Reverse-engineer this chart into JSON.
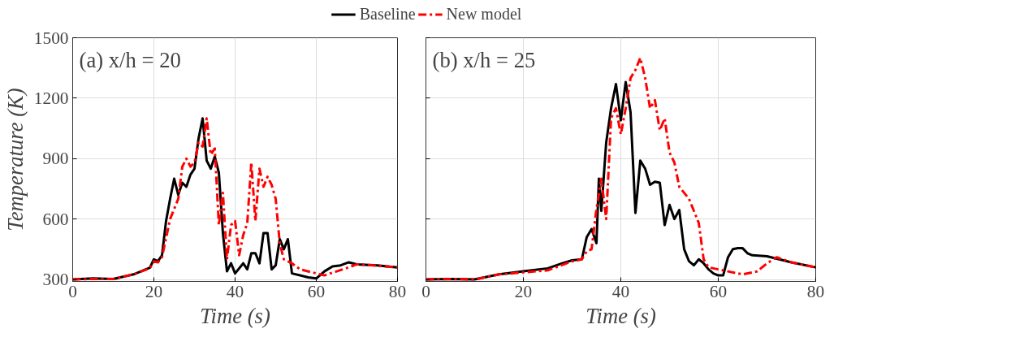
{
  "chart_data": [
    {
      "type": "line",
      "xlabel": "Time (s)",
      "ylabel": "Temperature (K)",
      "annotations": [
        "(a) x/h = 20"
      ],
      "xlim": [
        0,
        80
      ],
      "ylim": [
        290,
        1500
      ],
      "xticks": [
        0,
        20,
        40,
        60,
        80
      ],
      "yticks": [
        300,
        600,
        900,
        1200,
        1500
      ],
      "grid": true,
      "legend": "top",
      "marker": "none",
      "series": [
        {
          "name": "Baseline",
          "color": "#000000",
          "line_style": "solid",
          "x": [
            0,
            5,
            10,
            15,
            18,
            19,
            20,
            21,
            22,
            23,
            24,
            25,
            26,
            27,
            28,
            29,
            30,
            31,
            32,
            33,
            34,
            35,
            36,
            37,
            38,
            39,
            40,
            42,
            43,
            44,
            45,
            46,
            47,
            48,
            49,
            50,
            51,
            52,
            53,
            54,
            56,
            58,
            60,
            62,
            64,
            66,
            68,
            70,
            75,
            80
          ],
          "values": [
            300,
            305,
            302,
            325,
            350,
            358,
            400,
            390,
            420,
            590,
            700,
            800,
            720,
            780,
            760,
            820,
            850,
            1000,
            1100,
            890,
            850,
            910,
            830,
            530,
            340,
            380,
            330,
            380,
            350,
            430,
            430,
            380,
            530,
            530,
            350,
            370,
            500,
            450,
            500,
            330,
            320,
            310,
            305,
            340,
            365,
            370,
            385,
            375,
            370,
            360
          ]
        },
        {
          "name": "New model",
          "color": "#ff0000",
          "line_style": "dashdot",
          "x": [
            0,
            5,
            10,
            15,
            19,
            20,
            21,
            22,
            24,
            25,
            26,
            27,
            28,
            29,
            30,
            31,
            32,
            33,
            34,
            35,
            36,
            37,
            38,
            39,
            40,
            41,
            42,
            43,
            44,
            45,
            46,
            47,
            48,
            49,
            50,
            51,
            52,
            54,
            56,
            60,
            62,
            65,
            68,
            70,
            75,
            80
          ],
          "values": [
            300,
            302,
            302,
            325,
            355,
            390,
            385,
            410,
            600,
            650,
            700,
            860,
            900,
            860,
            880,
            980,
            960,
            1100,
            920,
            950,
            570,
            730,
            400,
            570,
            590,
            420,
            520,
            580,
            880,
            590,
            850,
            760,
            810,
            770,
            700,
            480,
            400,
            380,
            350,
            330,
            320,
            340,
            360,
            375,
            368,
            360
          ]
        }
      ]
    },
    {
      "type": "line",
      "xlabel": "Time (s)",
      "annotations": [
        "(b) x/h = 25"
      ],
      "xlim": [
        0,
        80
      ],
      "ylim": [
        290,
        1500
      ],
      "xticks": [
        0,
        20,
        40,
        60,
        80
      ],
      "yticks": [
        300,
        600,
        900,
        1200,
        1500
      ],
      "grid": true,
      "tick_labels": "x",
      "marker": "none",
      "series": [
        {
          "color": "#000000",
          "line_style": "solid",
          "x": [
            0,
            5,
            10,
            15,
            20,
            25,
            28,
            30,
            32,
            33,
            34,
            35,
            35.5,
            36,
            37,
            38,
            39,
            40,
            41,
            42,
            43,
            44,
            45,
            46,
            47,
            48,
            49,
            50,
            51,
            52,
            53,
            54,
            55,
            56,
            57,
            58,
            59,
            60,
            61,
            62,
            63,
            64,
            65,
            66,
            67,
            70,
            75,
            80
          ],
          "values": [
            300,
            302,
            300,
            325,
            340,
            355,
            380,
            395,
            400,
            510,
            550,
            480,
            800,
            640,
            980,
            1150,
            1270,
            1090,
            1280,
            1130,
            630,
            890,
            850,
            770,
            785,
            780,
            570,
            670,
            600,
            645,
            450,
            390,
            370,
            400,
            380,
            350,
            330,
            320,
            320,
            410,
            450,
            455,
            455,
            430,
            420,
            415,
            385,
            360
          ]
        },
        {
          "color": "#ff0000",
          "line_style": "dashdot",
          "x": [
            0,
            5,
            10,
            15,
            20,
            25,
            30,
            32,
            33,
            34,
            35,
            36,
            37,
            38,
            39,
            40,
            41,
            42,
            43,
            44,
            45,
            46,
            47,
            48,
            49,
            50,
            51,
            52,
            54,
            56,
            57,
            58,
            60,
            62,
            65,
            68,
            70,
            72,
            75,
            80
          ],
          "values": [
            300,
            302,
            300,
            325,
            335,
            345,
            390,
            400,
            440,
            450,
            650,
            800,
            600,
            1100,
            1150,
            1020,
            1150,
            1300,
            1340,
            1400,
            1300,
            1150,
            1190,
            1040,
            1100,
            930,
            880,
            760,
            700,
            580,
            400,
            360,
            350,
            340,
            325,
            340,
            380,
            410,
            385,
            360
          ]
        }
      ]
    }
  ]
}
